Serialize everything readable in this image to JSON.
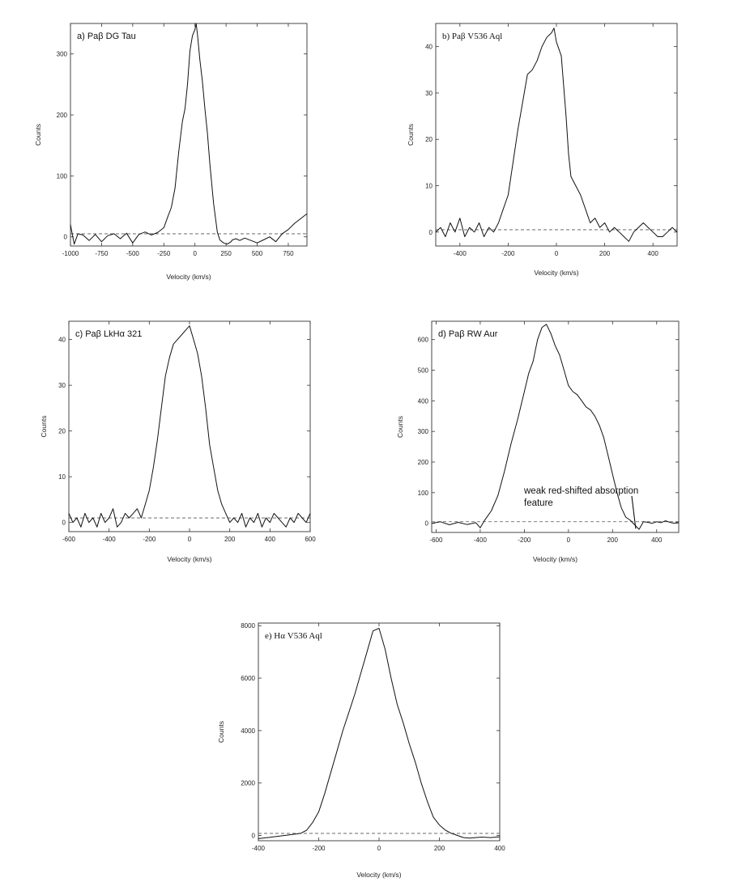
{
  "chart_data": [
    {
      "type": "line",
      "title": "a) Paβ  DG Tau",
      "xlabel": "Velocity (km/s)",
      "ylabel": "Counts",
      "xlim": [
        -1000,
        900
      ],
      "ylim": [
        -15,
        350
      ],
      "xticks": [
        -1000,
        -750,
        -500,
        -250,
        0,
        250,
        500,
        750
      ],
      "yticks": [
        0,
        100,
        200,
        300
      ],
      "baseline": 5,
      "series": [
        {
          "x": [
            -1000,
            -970,
            -940,
            -900,
            -850,
            -800,
            -750,
            -700,
            -650,
            -600,
            -550,
            -500,
            -450,
            -400,
            -350,
            -300,
            -250,
            -220,
            -190,
            -160,
            -130,
            -100,
            -80,
            -60,
            -40,
            -20,
            0,
            10,
            20,
            40,
            60,
            80,
            100,
            120,
            150,
            180,
            200,
            230,
            260,
            290,
            300,
            330,
            360,
            400,
            450,
            500,
            550,
            600,
            650,
            700,
            750,
            800,
            850,
            900
          ],
          "y": [
            20,
            -12,
            5,
            3,
            -6,
            4,
            -8,
            2,
            5,
            -3,
            6,
            -10,
            4,
            8,
            3,
            7,
            15,
            32,
            48,
            80,
            140,
            190,
            210,
            250,
            305,
            330,
            340,
            350,
            332,
            290,
            255,
            210,
            170,
            120,
            55,
            8,
            -5,
            -10,
            -12,
            -8,
            -5,
            -3,
            -6,
            -2,
            -6,
            -10,
            -5,
            0,
            -8,
            5,
            12,
            22,
            30,
            38
          ]
        }
      ]
    },
    {
      "type": "line",
      "title": "b) Paβ V536 Aql",
      "xlabel": "Velocity (km/s)",
      "ylabel": "Counts",
      "xlim": [
        -500,
        500
      ],
      "ylim": [
        -3,
        45
      ],
      "xticks": [
        -400,
        -200,
        0,
        200,
        400
      ],
      "yticks": [
        0,
        10,
        20,
        30,
        40
      ],
      "baseline": 0.5,
      "series": [
        {
          "x": [
            -500,
            -480,
            -460,
            -440,
            -420,
            -400,
            -380,
            -360,
            -340,
            -320,
            -300,
            -280,
            -260,
            -240,
            -220,
            -200,
            -180,
            -160,
            -140,
            -120,
            -100,
            -80,
            -60,
            -40,
            -20,
            -10,
            0,
            20,
            40,
            50,
            60,
            80,
            100,
            120,
            140,
            160,
            180,
            200,
            220,
            240,
            260,
            280,
            300,
            320,
            340,
            360,
            380,
            400,
            420,
            440,
            460,
            480,
            500
          ],
          "y": [
            0,
            1,
            -1,
            2,
            0,
            3,
            -1,
            1,
            0,
            2,
            -1,
            1,
            0,
            2,
            5,
            8,
            15,
            22,
            28,
            34,
            35,
            37,
            40,
            42,
            43,
            44,
            41,
            38,
            25,
            17,
            12,
            10,
            8,
            5,
            2,
            3,
            1,
            2,
            0,
            1,
            0,
            -1,
            -2,
            0,
            1,
            2,
            1,
            0,
            -1,
            -1,
            0,
            1,
            0
          ]
        }
      ]
    },
    {
      "type": "line",
      "title": "c) Paβ LkHα 321",
      "xlabel": "Velocity (km/s)",
      "ylabel": "Counts",
      "xlim": [
        -600,
        600
      ],
      "ylim": [
        -2,
        44
      ],
      "xticks": [
        -600,
        -400,
        -200,
        0,
        200,
        400,
        600
      ],
      "yticks": [
        0,
        10,
        20,
        30,
        40
      ],
      "baseline": 1,
      "series": [
        {
          "x": [
            -600,
            -580,
            -560,
            -540,
            -520,
            -500,
            -480,
            -460,
            -440,
            -420,
            -400,
            -380,
            -360,
            -340,
            -320,
            -300,
            -280,
            -260,
            -240,
            -220,
            -200,
            -180,
            -160,
            -140,
            -120,
            -100,
            -80,
            -60,
            -40,
            -20,
            0,
            20,
            40,
            60,
            80,
            100,
            120,
            140,
            160,
            180,
            200,
            220,
            240,
            260,
            280,
            300,
            320,
            340,
            360,
            380,
            400,
            420,
            440,
            460,
            480,
            500,
            520,
            540,
            560,
            580,
            600
          ],
          "y": [
            2,
            0,
            1,
            -1,
            2,
            0,
            1,
            -1,
            2,
            0,
            1,
            3,
            -1,
            0,
            2,
            1,
            2,
            3,
            1,
            4,
            7,
            12,
            18,
            25,
            32,
            36,
            39,
            40,
            41,
            42,
            43,
            40,
            37,
            32,
            25,
            17,
            12,
            7,
            4,
            2,
            0,
            1,
            0,
            2,
            -1,
            1,
            0,
            2,
            -1,
            1,
            0,
            2,
            1,
            0,
            -1,
            1,
            0,
            2,
            1,
            0,
            2
          ]
        }
      ]
    },
    {
      "type": "line",
      "title": "d) Paβ  RW Aur",
      "xlabel": "Velocity (km/s)",
      "ylabel": "Counts",
      "xlim": [
        -620,
        500
      ],
      "ylim": [
        -30,
        660
      ],
      "xticks": [
        -600,
        -400,
        -200,
        0,
        200,
        400
      ],
      "yticks": [
        0,
        100,
        200,
        300,
        400,
        500,
        600
      ],
      "baseline": 5,
      "annotation": "weak red-shifted absorption feature",
      "series": [
        {
          "x": [
            -620,
            -580,
            -540,
            -500,
            -460,
            -420,
            -400,
            -380,
            -350,
            -320,
            -290,
            -260,
            -230,
            -200,
            -180,
            -160,
            -140,
            -120,
            -100,
            -80,
            -60,
            -40,
            -20,
            0,
            20,
            40,
            60,
            80,
            100,
            120,
            140,
            160,
            180,
            200,
            220,
            240,
            260,
            280,
            300,
            320,
            340,
            360,
            380,
            400,
            420,
            440,
            460,
            480,
            500
          ],
          "y": [
            0,
            5,
            -5,
            3,
            -4,
            2,
            -15,
            10,
            40,
            90,
            170,
            260,
            340,
            430,
            490,
            530,
            600,
            640,
            650,
            620,
            580,
            550,
            500,
            450,
            430,
            420,
            400,
            380,
            370,
            350,
            320,
            280,
            220,
            160,
            100,
            50,
            20,
            10,
            -5,
            -20,
            5,
            3,
            0,
            5,
            2,
            8,
            3,
            0,
            5
          ]
        }
      ]
    },
    {
      "type": "line",
      "title": "e) Hα  V536 Aql",
      "xlabel": "Velocity (km/s)",
      "ylabel": "Counts",
      "xlim": [
        -400,
        400
      ],
      "ylim": [
        -200,
        8100
      ],
      "xticks": [
        -400,
        -200,
        0,
        200,
        400
      ],
      "yticks": [
        0,
        2000,
        4000,
        6000,
        8000
      ],
      "baseline": 80,
      "series": [
        {
          "x": [
            -400,
            -370,
            -340,
            -300,
            -260,
            -240,
            -220,
            -200,
            -180,
            -160,
            -140,
            -120,
            -100,
            -80,
            -60,
            -40,
            -20,
            0,
            20,
            40,
            60,
            80,
            100,
            120,
            140,
            160,
            180,
            200,
            220,
            240,
            260,
            280,
            300,
            340,
            370,
            400
          ],
          "y": [
            -120,
            -80,
            -40,
            20,
            80,
            200,
            500,
            900,
            1600,
            2400,
            3200,
            4000,
            4700,
            5400,
            6200,
            7000,
            7800,
            7900,
            7100,
            6000,
            5000,
            4300,
            3500,
            2800,
            2000,
            1300,
            700,
            400,
            200,
            80,
            0,
            -80,
            -100,
            -60,
            -80,
            -50
          ]
        }
      ]
    }
  ]
}
